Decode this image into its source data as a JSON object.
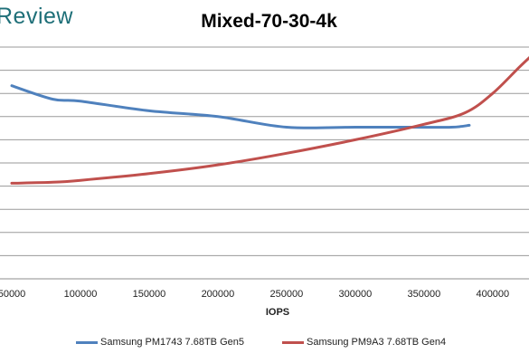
{
  "brand": {
    "text": "Review"
  },
  "chart_data": {
    "type": "line",
    "title": "Mixed-70-30-4k",
    "xlabel": "IOPS",
    "ylabel": "",
    "x_ticks": [
      "50000",
      "100000",
      "150000",
      "200000",
      "250000",
      "300000",
      "350000",
      "400000"
    ],
    "xlim": [
      50000,
      435000
    ],
    "ylim": [
      0,
      12
    ],
    "grid": true,
    "legend": "bottom",
    "series": [
      {
        "name": "Samsung PM1743 7.68TB Gen5",
        "color": "#4f81bd",
        "points": [
          [
            50000,
            10.0
          ],
          [
            80000,
            9.3
          ],
          [
            100000,
            9.2
          ],
          [
            150000,
            8.7
          ],
          [
            200000,
            8.4
          ],
          [
            250000,
            7.85
          ],
          [
            300000,
            7.85
          ],
          [
            340000,
            7.85
          ],
          [
            370000,
            7.85
          ],
          [
            383000,
            7.95
          ]
        ]
      },
      {
        "name": "Samsung PM9A3 7.68TB Gen4",
        "color": "#c0504d",
        "points": [
          [
            50000,
            4.95
          ],
          [
            80000,
            5.0
          ],
          [
            100000,
            5.1
          ],
          [
            150000,
            5.45
          ],
          [
            200000,
            5.9
          ],
          [
            250000,
            6.5
          ],
          [
            300000,
            7.2
          ],
          [
            350000,
            8.0
          ],
          [
            380000,
            8.6
          ],
          [
            400000,
            9.6
          ],
          [
            420000,
            11.0
          ],
          [
            435000,
            12.0
          ]
        ]
      }
    ]
  }
}
